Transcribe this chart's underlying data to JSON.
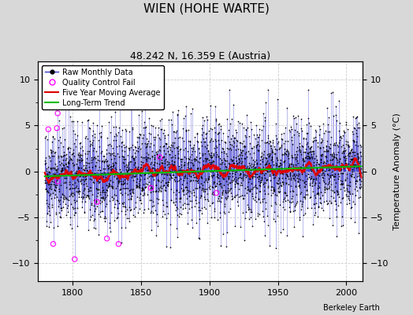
{
  "title": "WIEN (HOHE WARTE)",
  "subtitle": "48.242 N, 16.359 E (Austria)",
  "ylabel": "Temperature Anomaly (°C)",
  "xlabel_bottom": "Berkeley Earth",
  "xlim": [
    1775,
    2012
  ],
  "ylim": [
    -12,
    12
  ],
  "yticks": [
    -10,
    -5,
    0,
    5,
    10
  ],
  "xticks": [
    1800,
    1850,
    1900,
    1950,
    2000
  ],
  "start_year": 1780,
  "end_year": 2011,
  "seed": 42,
  "fig_bg_color": "#d8d8d8",
  "plot_bg_color": "#ffffff",
  "line_color": "#3333cc",
  "dot_color": "#000000",
  "moving_avg_color": "#dd0000",
  "trend_color": "#00bb00",
  "qc_fail_color": "#ff00ff",
  "title_fontsize": 11,
  "subtitle_fontsize": 9,
  "tick_fontsize": 8,
  "ylabel_fontsize": 8,
  "noise_std": 2.8,
  "n_qc_extreme": 8,
  "n_qc_random": 5
}
